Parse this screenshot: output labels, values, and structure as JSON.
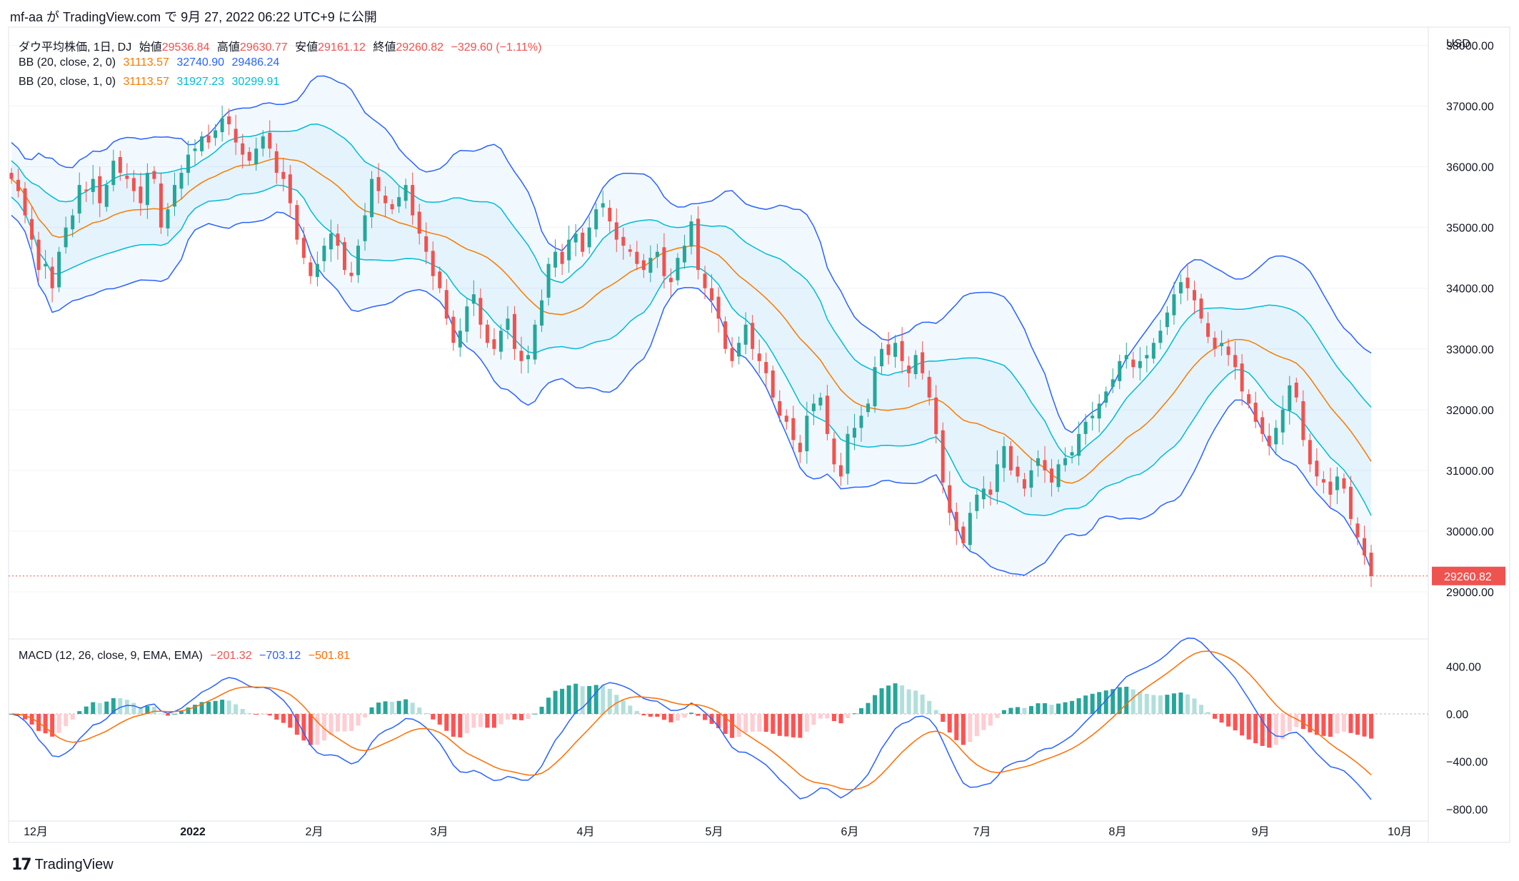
{
  "header": {
    "publisher": "mf-aa",
    "text": "が TradingView.com で 9月 27, 2022 06:22 UTC+9 に公開"
  },
  "footer": {
    "brand": "TradingView"
  },
  "legend": {
    "symbol": "ダウ平均株価, 1日, DJ",
    "open_label": "始値",
    "open": "29536.84",
    "high_label": "高値",
    "high": "29630.77",
    "low_label": "安値",
    "low": "29161.12",
    "close_label": "終値",
    "close": "29260.82",
    "change": "−329.60 (−1.11%)",
    "bb2_label": "BB (20, close, 2, 0)",
    "bb2_mid": "31113.57",
    "bb2_upper": "32740.90",
    "bb2_lower": "29486.24",
    "bb1_label": "BB (20, close, 1, 0)",
    "bb1_mid": "31113.57",
    "bb1_upper": "31927.23",
    "bb1_lower": "30299.91",
    "macd_label": "MACD (12, 26, close, 9, EMA, EMA)",
    "macd_hist": "−201.32",
    "macd_line": "−703.12",
    "macd_signal": "−501.81"
  },
  "colors": {
    "up": "#26a69a",
    "down": "#ef5350",
    "bb2": "#2962ff",
    "bb1": "#00bcd4",
    "basis": "#f57c00",
    "macd": "#2962ff",
    "signal": "#ff6d00"
  },
  "chart_data": [
    {
      "type": "candlestick",
      "title": "ダウ平均株価, 1日, DJ",
      "currency": "USD",
      "ylim": [
        28400,
        38100
      ],
      "y_ticks": [
        "29000.00",
        "30000.00",
        "31000.00",
        "32000.00",
        "33000.00",
        "34000.00",
        "35000.00",
        "36000.00",
        "37000.00",
        "38000.00"
      ],
      "last_price_label": "29260.82",
      "x_ticks": [
        "12月",
        "2022",
        "2月",
        "3月",
        "4月",
        "5月",
        "6月",
        "7月",
        "8月",
        "9月",
        "10月"
      ],
      "closes": [
        35800,
        35600,
        35200,
        34800,
        34300,
        34400,
        34000,
        34600,
        35000,
        35200,
        35700,
        35600,
        35800,
        35400,
        35700,
        36100,
        35900,
        35800,
        35600,
        35400,
        35900,
        35800,
        35000,
        35300,
        35700,
        35900,
        36200,
        36300,
        36500,
        36400,
        36600,
        36800,
        36700,
        36400,
        36200,
        36100,
        36300,
        36500,
        36300,
        35900,
        35800,
        35400,
        34800,
        34500,
        34200,
        34400,
        34700,
        34900,
        34700,
        34300,
        34200,
        34700,
        35200,
        35800,
        35600,
        35400,
        35300,
        35500,
        35700,
        35200,
        34900,
        34600,
        34200,
        34000,
        33500,
        33100,
        33300,
        33700,
        33900,
        33400,
        33100,
        33000,
        33300,
        33500,
        33000,
        32800,
        32900,
        33400,
        33800,
        34400,
        34600,
        34400,
        34800,
        34900,
        34600,
        35000,
        35300,
        35400,
        35100,
        34800,
        34700,
        34600,
        34400,
        34300,
        34500,
        34600,
        34200,
        34100,
        34500,
        34700,
        35100,
        34300,
        34000,
        33800,
        33500,
        33000,
        32800,
        33100,
        33400,
        33000,
        32800,
        32600,
        32200,
        31900,
        31800,
        31500,
        31300,
        31900,
        32100,
        32200,
        31600,
        31100,
        30900,
        31600,
        31700,
        31900,
        32100,
        32700,
        33000,
        32900,
        33100,
        32800,
        32600,
        32900,
        32600,
        32200,
        31600,
        30800,
        30300,
        30000,
        29800,
        30300,
        30600,
        30700,
        30600,
        31100,
        31400,
        31000,
        30900,
        30700,
        31000,
        31200,
        31000,
        30800,
        31100,
        31200,
        31300,
        31600,
        31800,
        31900,
        32100,
        32300,
        32500,
        32800,
        32900,
        32700,
        32800,
        32900,
        33100,
        33300,
        33600,
        33900,
        34100,
        34000,
        33800,
        33500,
        33200,
        33000,
        33100,
        32900,
        32700,
        32300,
        32100,
        31800,
        31600,
        31400,
        31700,
        32000,
        32400,
        32200,
        31500,
        31100,
        30900,
        30800,
        30600,
        30900,
        30700,
        30200,
        29900,
        29600,
        29260
      ],
      "series": [
        {
          "name": "BB (20, close, 2, 0)",
          "basis": "31113.57",
          "upper": "32740.90",
          "lower": "29486.24"
        },
        {
          "name": "BB (20, close, 1, 0)",
          "basis": "31113.57",
          "upper": "31927.23",
          "lower": "30299.91"
        }
      ]
    },
    {
      "type": "macd",
      "title": "MACD (12, 26, close, 9, EMA, EMA)",
      "ylim": [
        -900,
        600
      ],
      "y_ticks": [
        "400.00",
        "0.00",
        "−400.00",
        "−800.00"
      ],
      "y_tick_values": [
        400,
        0,
        -400,
        -800
      ],
      "last": {
        "histogram": -201.32,
        "macd": -703.12,
        "signal": -501.81
      }
    }
  ]
}
